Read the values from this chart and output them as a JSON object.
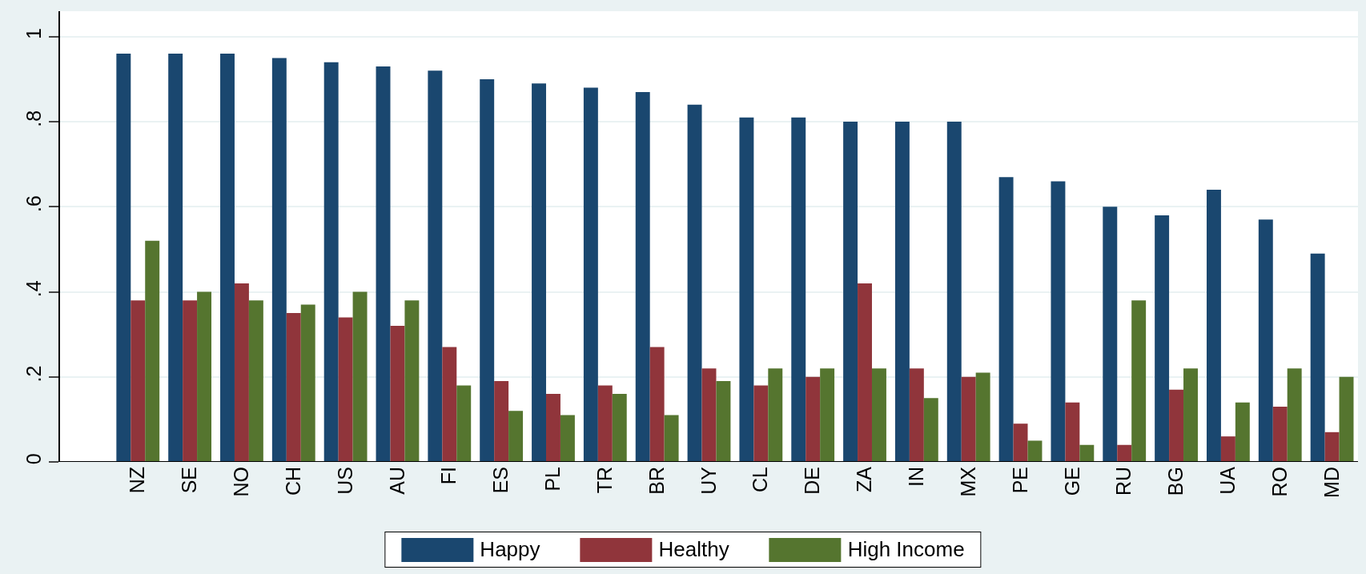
{
  "chart_data": {
    "type": "bar",
    "categories": [
      "NZ",
      "SE",
      "NO",
      "CH",
      "US",
      "AU",
      "FI",
      "ES",
      "PL",
      "TR",
      "BR",
      "UY",
      "CL",
      "DE",
      "ZA",
      "IN",
      "MX",
      "PE",
      "GE",
      "RU",
      "BG",
      "UA",
      "RO",
      "MD"
    ],
    "series": [
      {
        "name": "Happy",
        "color": "#1a476f",
        "values": [
          0.96,
          0.96,
          0.96,
          0.95,
          0.94,
          0.93,
          0.92,
          0.9,
          0.89,
          0.88,
          0.87,
          0.84,
          0.81,
          0.81,
          0.8,
          0.8,
          0.8,
          0.67,
          0.66,
          0.6,
          0.58,
          0.64,
          0.57,
          0.49
        ]
      },
      {
        "name": "Healthy",
        "color": "#90353b",
        "values": [
          0.38,
          0.38,
          0.42,
          0.35,
          0.34,
          0.32,
          0.27,
          0.19,
          0.16,
          0.18,
          0.27,
          0.22,
          0.18,
          0.2,
          0.42,
          0.22,
          0.2,
          0.09,
          0.14,
          0.04,
          0.17,
          0.06,
          0.13,
          0.07
        ]
      },
      {
        "name": "High Income",
        "color": "#55752f",
        "values": [
          0.52,
          0.4,
          0.38,
          0.37,
          0.4,
          0.38,
          0.18,
          0.12,
          0.11,
          0.16,
          0.11,
          0.19,
          0.22,
          0.22,
          0.22,
          0.15,
          0.21,
          0.05,
          0.04,
          0.38,
          0.22,
          0.14,
          0.22,
          0.2
        ]
      }
    ],
    "ylim": [
      0,
      1.06
    ],
    "yticks": [
      {
        "value": 0,
        "label": "0"
      },
      {
        "value": 0.2,
        "label": ".2"
      },
      {
        "value": 0.4,
        "label": ".4"
      },
      {
        "value": 0.6,
        "label": ".6"
      },
      {
        "value": 0.8,
        "label": ".8"
      },
      {
        "value": 1,
        "label": "1"
      }
    ],
    "grid": "y",
    "legend": "bottom"
  }
}
